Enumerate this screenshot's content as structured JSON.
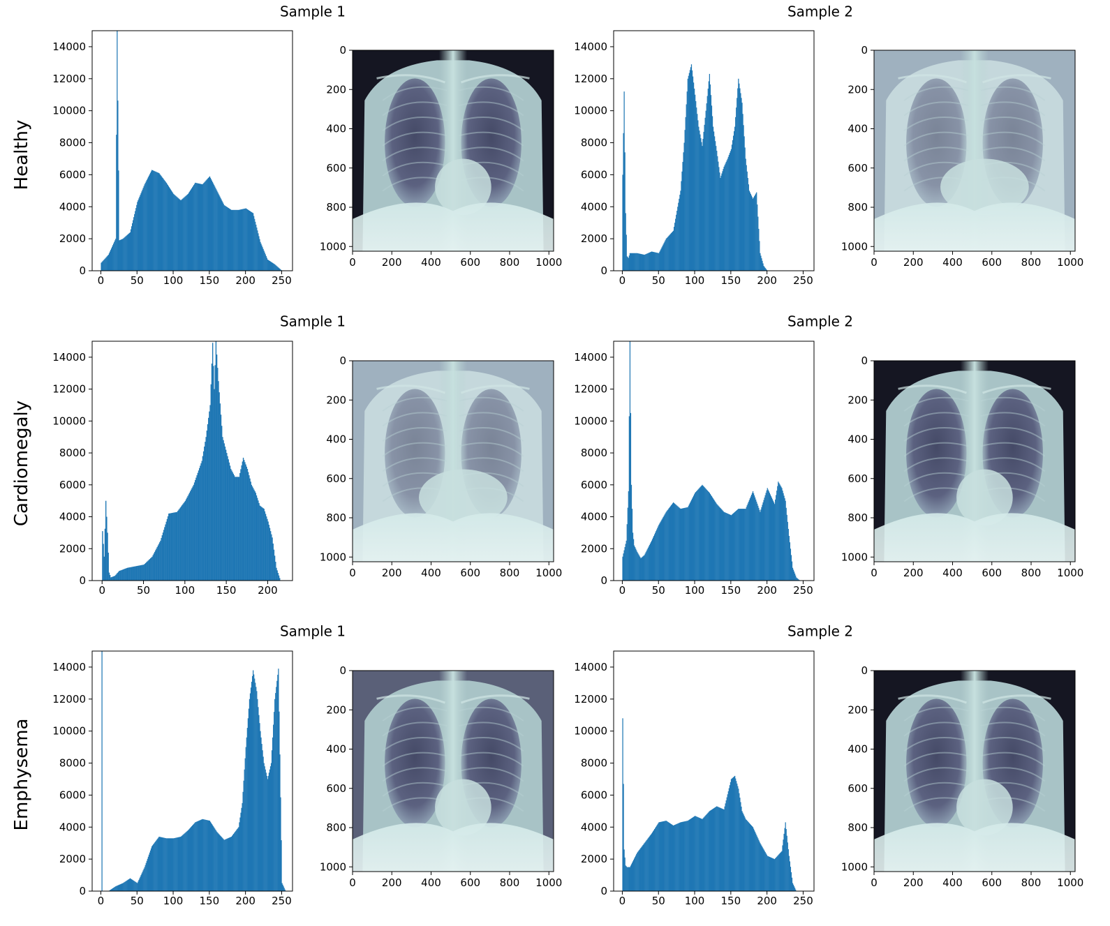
{
  "colors": {
    "bar": "#1f77b4",
    "axis": "#000000",
    "xray_dark": "#151622",
    "xray_light": "#dceeee"
  },
  "row_labels": [
    "Healthy",
    "Cardiomegaly",
    "Emphysema"
  ],
  "sample_titles": [
    "Sample 1",
    "Sample 2",
    "Sample 1",
    "Sample 2",
    "Sample 1",
    "Sample 2"
  ],
  "chart_data": [
    {
      "type": "histogram",
      "row": "Healthy",
      "title": "Sample 1",
      "x": [
        0,
        10,
        20,
        22,
        25,
        30,
        40,
        50,
        60,
        70,
        80,
        90,
        100,
        110,
        120,
        130,
        140,
        150,
        160,
        170,
        180,
        190,
        200,
        210,
        220,
        230,
        240,
        245,
        250,
        255
      ],
      "y": [
        500,
        1000,
        2000,
        15000,
        1900,
        2000,
        2400,
        4300,
        5400,
        6300,
        6100,
        5500,
        4800,
        4400,
        4800,
        5500,
        5400,
        5900,
        5000,
        4100,
        3800,
        3800,
        3900,
        3600,
        1800,
        700,
        400,
        200,
        0,
        0
      ],
      "xlim": [
        -12,
        265
      ],
      "ylim": [
        0,
        15000
      ],
      "xticks": [
        0,
        50,
        100,
        150,
        200,
        250
      ],
      "yticks": [
        0,
        2000,
        4000,
        6000,
        8000,
        10000,
        12000,
        14000
      ]
    },
    {
      "type": "image",
      "row": "Healthy",
      "title": "Sample 1",
      "xlim": [
        0,
        1024
      ],
      "ylim": [
        1024,
        0
      ],
      "xticks": [
        0,
        200,
        400,
        600,
        800,
        1000
      ],
      "yticks": [
        0,
        200,
        400,
        600,
        800,
        1000
      ],
      "exposure": "normal"
    },
    {
      "type": "histogram",
      "row": "Healthy",
      "title": "Sample 2",
      "x": [
        0,
        2,
        4,
        6,
        8,
        10,
        20,
        30,
        40,
        50,
        60,
        70,
        80,
        85,
        90,
        95,
        100,
        105,
        110,
        115,
        120,
        125,
        130,
        135,
        140,
        145,
        150,
        155,
        160,
        165,
        170,
        175,
        180,
        185,
        190,
        195,
        200,
        210,
        255
      ],
      "y": [
        6000,
        11200,
        3600,
        900,
        800,
        1100,
        1100,
        1000,
        1200,
        1100,
        2000,
        2500,
        5000,
        8000,
        12000,
        12900,
        11000,
        9000,
        7800,
        10000,
        12300,
        9000,
        7500,
        5800,
        6500,
        7000,
        7600,
        9000,
        12000,
        10500,
        7000,
        5000,
        4500,
        4900,
        1100,
        300,
        0,
        0,
        0
      ],
      "xlim": [
        -12,
        265
      ],
      "ylim": [
        0,
        15000
      ],
      "xticks": [
        0,
        50,
        100,
        150,
        200,
        250
      ],
      "yticks": [
        0,
        2000,
        4000,
        6000,
        8000,
        10000,
        12000,
        14000
      ]
    },
    {
      "type": "image",
      "row": "Healthy",
      "title": "Sample 2",
      "xlim": [
        0,
        1024
      ],
      "ylim": [
        1024,
        0
      ],
      "xticks": [
        0,
        200,
        400,
        600,
        800,
        1000
      ],
      "yticks": [
        0,
        200,
        400,
        600,
        800,
        1000
      ],
      "exposure": "washed"
    },
    {
      "type": "histogram",
      "row": "Cardiomegaly",
      "title": "Sample 1",
      "x": [
        0,
        2,
        4,
        6,
        8,
        10,
        15,
        20,
        30,
        40,
        50,
        60,
        70,
        80,
        90,
        100,
        110,
        120,
        125,
        130,
        133,
        135,
        137,
        140,
        145,
        150,
        155,
        160,
        165,
        170,
        175,
        180,
        185,
        190,
        195,
        200,
        205,
        210,
        215,
        220
      ],
      "y": [
        3100,
        1500,
        5000,
        3000,
        500,
        200,
        300,
        600,
        800,
        900,
        1000,
        1500,
        2500,
        4200,
        4300,
        5000,
        6000,
        7500,
        9000,
        11000,
        14900,
        12000,
        15000,
        12500,
        9000,
        8000,
        7000,
        6500,
        6500,
        7700,
        7000,
        6000,
        5500,
        4700,
        4500,
        3700,
        2700,
        800,
        0,
        0
      ],
      "xlim": [
        -12,
        230
      ],
      "ylim": [
        0,
        15000
      ],
      "xticks": [
        0,
        50,
        100,
        150,
        200
      ],
      "yticks": [
        0,
        2000,
        4000,
        6000,
        8000,
        10000,
        12000,
        14000
      ]
    },
    {
      "type": "image",
      "row": "Cardiomegaly",
      "title": "Sample 1",
      "xlim": [
        0,
        1024
      ],
      "ylim": [
        1024,
        0
      ],
      "xticks": [
        0,
        200,
        400,
        600,
        800,
        1000
      ],
      "yticks": [
        0,
        200,
        400,
        600,
        800,
        1000
      ],
      "exposure": "washed"
    },
    {
      "type": "histogram",
      "row": "Cardiomegaly",
      "title": "Sample 2",
      "x": [
        0,
        5,
        8,
        10,
        12,
        14,
        16,
        20,
        25,
        30,
        40,
        50,
        60,
        70,
        80,
        90,
        100,
        110,
        120,
        130,
        140,
        150,
        160,
        170,
        180,
        190,
        200,
        210,
        215,
        220,
        225,
        230,
        235,
        240,
        245
      ],
      "y": [
        1500,
        2500,
        5600,
        15000,
        6000,
        3000,
        2200,
        1800,
        1400,
        1600,
        2500,
        3500,
        4300,
        4900,
        4500,
        4600,
        5500,
        6000,
        5500,
        4800,
        4300,
        4100,
        4500,
        4500,
        5600,
        4300,
        5800,
        4800,
        6200,
        5800,
        5000,
        2800,
        800,
        200,
        0
      ],
      "xlim": [
        -12,
        265
      ],
      "ylim": [
        0,
        15000
      ],
      "xticks": [
        0,
        50,
        100,
        150,
        200,
        250
      ],
      "yticks": [
        0,
        2000,
        4000,
        6000,
        8000,
        10000,
        12000,
        14000
      ]
    },
    {
      "type": "image",
      "row": "Cardiomegaly",
      "title": "Sample 2",
      "xlim": [
        0,
        1024
      ],
      "ylim": [
        1024,
        0
      ],
      "xticks": [
        0,
        200,
        400,
        600,
        800,
        1000
      ],
      "yticks": [
        0,
        200,
        400,
        600,
        800,
        1000
      ],
      "exposure": "normal"
    },
    {
      "type": "histogram",
      "row": "Emphysema",
      "title": "Sample 1",
      "x": [
        0,
        1,
        2,
        10,
        20,
        30,
        40,
        50,
        60,
        70,
        80,
        90,
        100,
        110,
        120,
        130,
        140,
        150,
        160,
        170,
        180,
        190,
        195,
        200,
        205,
        210,
        215,
        220,
        225,
        230,
        235,
        240,
        245,
        250,
        255
      ],
      "y": [
        0,
        15000,
        0,
        0,
        300,
        500,
        800,
        500,
        1500,
        2800,
        3400,
        3300,
        3300,
        3400,
        3800,
        4300,
        4500,
        4400,
        3700,
        3200,
        3400,
        4000,
        5500,
        9000,
        12000,
        13800,
        12500,
        10000,
        8000,
        7000,
        8000,
        12000,
        13900,
        500,
        0
      ],
      "xlim": [
        -12,
        265
      ],
      "ylim": [
        0,
        15000
      ],
      "xticks": [
        0,
        50,
        100,
        150,
        200,
        250
      ],
      "yticks": [
        0,
        2000,
        4000,
        6000,
        8000,
        10000,
        12000,
        14000
      ]
    },
    {
      "type": "image",
      "row": "Emphysema",
      "title": "Sample 1",
      "xlim": [
        0,
        1024
      ],
      "ylim": [
        1024,
        0
      ],
      "xticks": [
        0,
        200,
        400,
        600,
        800,
        1000
      ],
      "yticks": [
        0,
        200,
        400,
        600,
        800,
        1000
      ],
      "exposure": "bright"
    },
    {
      "type": "histogram",
      "row": "Emphysema",
      "title": "Sample 2",
      "x": [
        0,
        2,
        4,
        6,
        10,
        20,
        30,
        40,
        50,
        60,
        70,
        80,
        90,
        100,
        110,
        120,
        130,
        140,
        150,
        155,
        160,
        165,
        170,
        180,
        190,
        200,
        210,
        220,
        225,
        230,
        235,
        240,
        245
      ],
      "y": [
        10800,
        2600,
        1600,
        1500,
        1500,
        2400,
        3000,
        3600,
        4300,
        4400,
        4100,
        4300,
        4400,
        4700,
        4500,
        5000,
        5300,
        5100,
        7000,
        7200,
        6400,
        5000,
        4500,
        4000,
        3000,
        2200,
        2000,
        2500,
        4300,
        2200,
        500,
        0,
        0
      ],
      "xlim": [
        -12,
        265
      ],
      "ylim": [
        0,
        15000
      ],
      "xticks": [
        0,
        50,
        100,
        150,
        200,
        250
      ],
      "yticks": [
        0,
        2000,
        4000,
        6000,
        8000,
        10000,
        12000,
        14000
      ]
    },
    {
      "type": "image",
      "row": "Emphysema",
      "title": "Sample 2",
      "xlim": [
        0,
        1024
      ],
      "ylim": [
        1024,
        0
      ],
      "xticks": [
        0,
        200,
        400,
        600,
        800,
        1000
      ],
      "yticks": [
        0,
        200,
        400,
        600,
        800,
        1000
      ],
      "exposure": "dark"
    }
  ]
}
